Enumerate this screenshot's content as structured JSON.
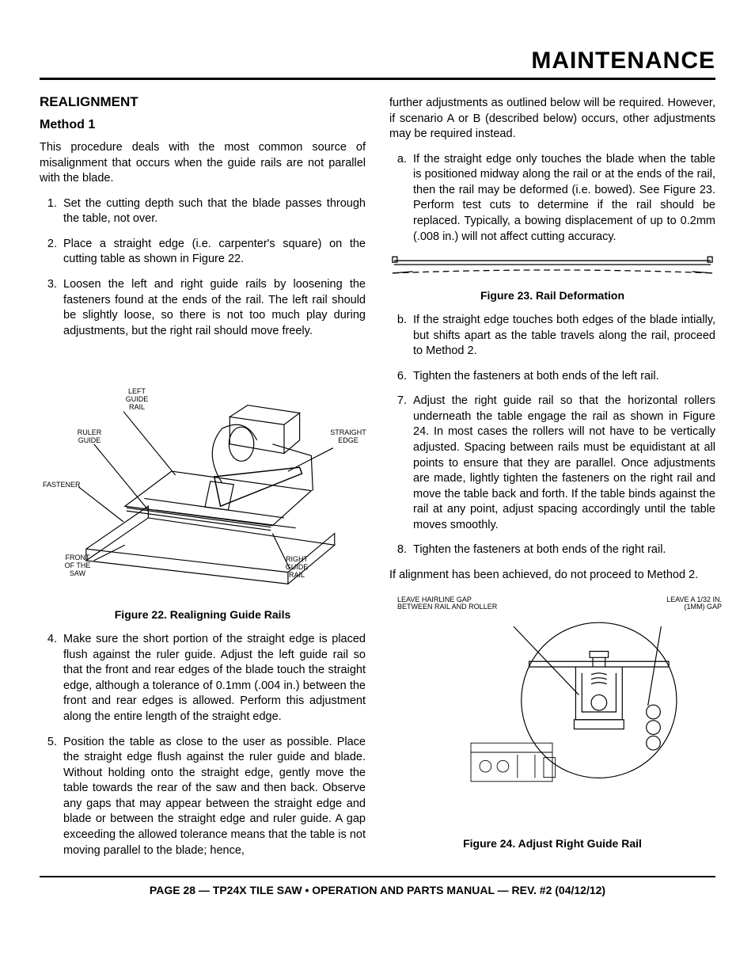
{
  "header": {
    "title": "MAINTENANCE"
  },
  "left": {
    "section": "REALIGNMENT",
    "method": "Method 1",
    "intro": "This procedure deals with the most common source of misalignment that occurs when the guide rails are not parallel with the blade.",
    "steps_a": {
      "s1": "Set the cutting depth such that the blade passes through the table, not over.",
      "s2": "Place a straight edge (i.e. carpenter's square) on the cutting table as shown in Figure 22.",
      "s3": "Loosen the left and right guide rails by loosening the fasteners found at the ends of the rail. The left rail should be slightly loose, so there is not too much play during adjustments, but the right rail should move freely."
    },
    "fig22": {
      "caption": "Figure 22. Realigning Guide Rails",
      "labels": {
        "left_guide": "LEFT\nGUIDE\nRAIL",
        "ruler_guide": "RULER\nGUIDE",
        "fastener": "FASTENER",
        "front_saw": "FRONT\nOF THE\nSAW",
        "right_guide": "RIGHT\nGUIDE\nRAIL",
        "straight_edge": "STRAIGHT\nEDGE"
      }
    },
    "steps_b": {
      "s4": "Make sure the short portion of the straight edge is placed flush against the ruler guide.  Adjust the left guide rail so that the front and rear edges of the blade touch the straight edge, although a tolerance of 0.1mm (.004 in.) between the front and rear edges is allowed.  Perform this adjustment along the entire length of the straight edge.",
      "s5": "Position the table as close to the user as possible.  Place the straight edge flush against the ruler guide and blade.  Without holding onto the straight edge, gently move the table towards the rear of the saw and then back.  Observe any gaps that may appear between the straight edge and blade or between the straight edge and ruler guide.  A gap exceeding the allowed tolerance means that the table is not moving parallel to the blade; hence,"
    }
  },
  "right": {
    "cont": "further adjustments as outlined below will be required.  However, if scenario A or B (described below) occurs, other adjustments may be required instead.",
    "sub_a": "If the straight edge only touches the blade when the table is positioned midway along the rail or at the ends of the rail, then the rail may be deformed (i.e. bowed). See Figure 23. Perform test cuts to determine if the rail should be replaced.  Typically, a bowing displacement of up to 0.2mm (.008 in.) will not affect cutting accuracy.",
    "fig23": {
      "caption": "Figure 23. Rail Deformation"
    },
    "sub_b": "If the straight edge touches both edges of the blade intially, but shifts apart as the table travels  along the rail, proceed to Method 2.",
    "s6": "Tighten the fasteners at both ends of the left rail.",
    "s7": "Adjust the right guide rail so that the horizontal rollers underneath the table engage the rail as shown in Figure 24.  In most cases the rollers will not have to be vertically adjusted.  Spacing between rails must be equidistant at all points to ensure that they are parallel.  Once adjustments are made, lightly tighten the fasteners on the right rail and move the table back and forth.  If the table binds against the rail at any point, adjust spacing accordingly until the table moves smoothly.",
    "s8": "Tighten the fasteners at both ends of the right rail.",
    "closing": "If alignment has been achieved, do not proceed to Method 2.",
    "fig24": {
      "caption": "Figure 24. Adjust Right Guide Rail",
      "labels": {
        "hairline": "LEAVE HAIRLINE GAP\nBETWEEN RAIL AND ROLLER",
        "gap": "LEAVE A 1/32 IN.\n(1MM) GAP"
      }
    }
  },
  "footer": "PAGE 28 — TP24X TILE SAW • OPERATION AND PARTS MANUAL — REV. #2 (04/12/12)"
}
